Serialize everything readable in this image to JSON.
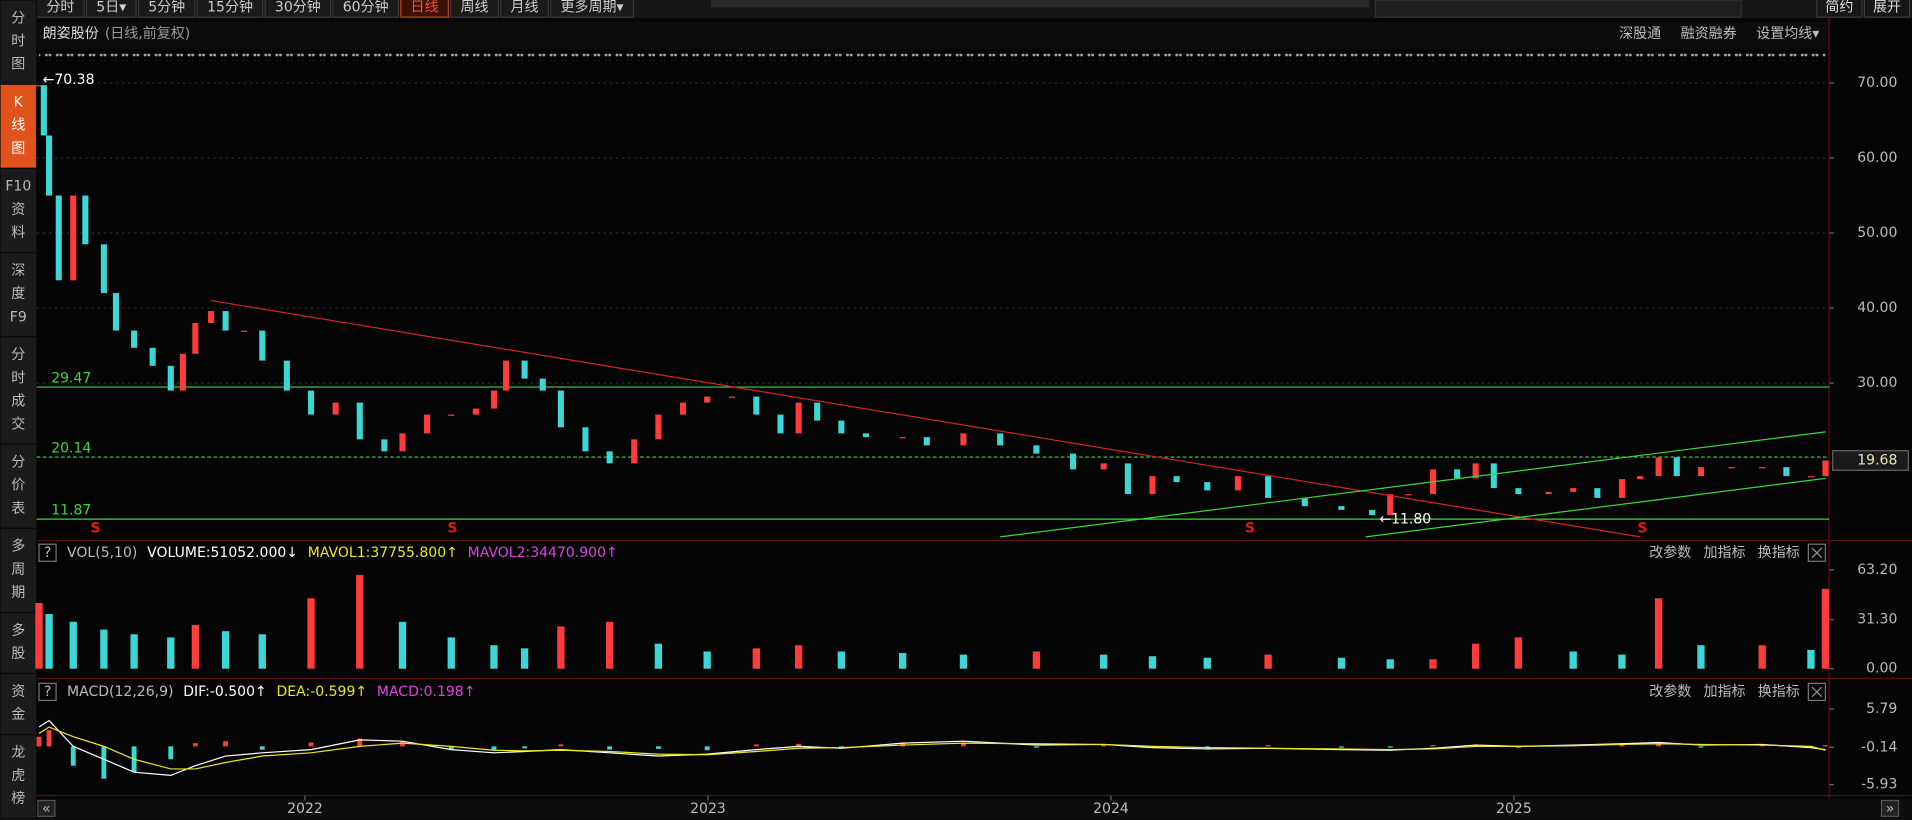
{
  "toolbar": {
    "tabs": [
      "分时",
      "5日▾",
      "5分钟",
      "15分钟",
      "30分钟",
      "60分钟",
      "日线",
      "周线",
      "月线",
      "更多周期▾"
    ],
    "active": 6,
    "right": [
      "简约",
      "展开"
    ]
  },
  "sidebar": {
    "items": [
      [
        "分",
        "时",
        "图"
      ],
      [
        "K",
        "线",
        "图"
      ],
      [
        "F10",
        "资",
        "料"
      ],
      [
        "深",
        "度",
        "F9"
      ],
      [
        "分",
        "时",
        "成",
        "交"
      ],
      [
        "分",
        "价",
        "表"
      ],
      [
        "多",
        "周",
        "期"
      ],
      [
        "多",
        "股"
      ],
      [
        "资",
        "金"
      ],
      [
        "龙",
        "虎",
        "榜"
      ]
    ],
    "active": 1
  },
  "chart_header": {
    "title": "朗姿股份",
    "subtitle": "(日线,前复权)",
    "links": [
      "深股通",
      "融资融券",
      "设置均线▾"
    ]
  },
  "panel_buttons": [
    "改参数",
    "加指标",
    "换指标"
  ],
  "help": "?",
  "chart_data": [
    {
      "type": "candlestick",
      "x": [
        2021.34,
        2021.352,
        2021.365,
        2021.389,
        2021.425,
        2021.455,
        2021.501,
        2021.531,
        2021.576,
        2021.622,
        2021.667,
        2021.697,
        2021.728,
        2021.767,
        2021.803,
        2021.849,
        2021.894,
        2021.955,
        2022.015,
        2022.076,
        2022.136,
        2022.197,
        2022.242,
        2022.303,
        2022.363,
        2022.424,
        2022.469,
        2022.499,
        2022.545,
        2022.59,
        2022.635,
        2022.696,
        2022.756,
        2022.817,
        2022.877,
        2022.938,
        2022.998,
        2023.059,
        2023.12,
        2023.18,
        2023.225,
        2023.271,
        2023.331,
        2023.392,
        2023.483,
        2023.543,
        2023.634,
        2023.725,
        2023.815,
        2023.906,
        2023.982,
        2024.042,
        2024.103,
        2024.163,
        2024.239,
        2024.315,
        2024.39,
        2024.481,
        2024.572,
        2024.648,
        2024.693,
        2024.738,
        2024.799,
        2024.859,
        2024.905,
        2024.95,
        2025.011,
        2025.086,
        2025.147,
        2025.207,
        2025.268,
        2025.313,
        2025.359,
        2025.404,
        2025.464,
        2025.54,
        2025.616,
        2025.676,
        2025.737,
        2025.773
      ],
      "values": [
        69.7,
        63,
        55,
        43.7,
        55,
        48.5,
        42,
        37,
        34.7,
        32.3,
        29,
        33.9,
        38,
        39.6,
        37,
        37,
        33,
        29,
        25.8,
        27.4,
        22.5,
        20.9,
        23.3,
        25.8,
        25.8,
        26.6,
        29,
        33,
        30.6,
        29,
        24.1,
        20.9,
        19.3,
        22.5,
        25.8,
        27.4,
        28.2,
        28.2,
        25.8,
        23.3,
        27.4,
        25,
        23.3,
        22.8,
        22.8,
        21.7,
        23.3,
        21.7,
        20.6,
        18.5,
        19.3,
        15.2,
        17.6,
        16.8,
        15.7,
        17.6,
        14.7,
        13.6,
        13.1,
        12.4,
        15.2,
        15.2,
        18.5,
        17.3,
        19.3,
        16,
        15.2,
        15.5,
        16,
        14.7,
        17.2,
        17.6,
        20.1,
        17.6,
        18.8,
        18.8,
        18.8,
        17.6,
        17.6,
        19.68
      ],
      "up_color": "#ff3b3b",
      "down_color": "#3cd6d6",
      "xlim": [
        2021.334,
        2025.782
      ],
      "xticks": [
        2022,
        2023,
        2024,
        2025
      ],
      "ylim": [
        9.5,
        74.55
      ],
      "yticks": [
        {
          "value": 70,
          "label": "70.00"
        },
        {
          "value": 60,
          "label": "60.00"
        },
        {
          "value": 50,
          "label": "50.00"
        },
        {
          "value": 40,
          "label": "40.00"
        },
        {
          "value": 30,
          "label": "30.00"
        }
      ],
      "grid": true,
      "level_color": "#3ad63a",
      "levels": [
        {
          "value": 29.47,
          "dashed": false
        },
        {
          "value": 20.14,
          "dashed": true
        },
        {
          "value": 11.87,
          "dashed": false
        }
      ],
      "trendlines": [
        {
          "color": "#d42424",
          "x": [
            2021.767,
            2025.313
          ],
          "y": [
            41.0,
            9.5
          ]
        },
        {
          "color": "#3ad63a",
          "x": [
            2023.725,
            2025.773
          ],
          "y": [
            9.5,
            23.5
          ]
        },
        {
          "color": "#3ad63a",
          "x": [
            2024.632,
            2025.773
          ],
          "y": [
            9.5,
            17.3
          ]
        }
      ],
      "annotations": [
        {
          "text": "←70.38",
          "x": 2021.34,
          "y": 70.38
        },
        {
          "text": "←11.80",
          "x": 2024.657,
          "y": 11.8
        }
      ],
      "signals": {
        "label": "S",
        "color": "#e01818",
        "x": [
          2021.48,
          2022.366,
          2024.345,
          2025.319
        ]
      }
    },
    {
      "type": "bar",
      "header": [
        "VOL(5,10)",
        "VOLUME:51052.000↓",
        "MAVOL1:37755.800↑",
        "MAVOL2:34470.900↑"
      ],
      "header_colors": [
        "#bbbbbb",
        "#ffffff",
        "#e8e820",
        "#e040e0"
      ],
      "x": [
        2021.34,
        2021.365,
        2021.425,
        2021.501,
        2021.576,
        2021.667,
        2021.728,
        2021.803,
        2021.894,
        2022.015,
        2022.136,
        2022.242,
        2022.363,
        2022.469,
        2022.545,
        2022.635,
        2022.756,
        2022.877,
        2022.998,
        2023.12,
        2023.225,
        2023.331,
        2023.483,
        2023.634,
        2023.815,
        2023.982,
        2024.103,
        2024.239,
        2024.39,
        2024.572,
        2024.693,
        2024.799,
        2024.905,
        2025.011,
        2025.147,
        2025.268,
        2025.359,
        2025.464,
        2025.616,
        2025.737,
        2025.773
      ],
      "values": [
        42,
        35,
        30,
        25,
        22,
        20,
        28,
        24,
        22,
        45,
        60,
        30,
        20,
        15,
        13,
        27,
        30,
        16,
        11,
        13,
        15,
        11,
        10,
        9,
        11,
        9,
        8,
        7,
        9,
        7,
        6,
        6,
        16,
        20,
        11,
        9,
        45,
        15,
        15,
        12,
        51.05
      ],
      "up_color": "#ff3b3b",
      "down_color": "#3cd6d6",
      "xlim": [
        2021.334,
        2025.782
      ],
      "ylim": [
        -3.9,
        67.1
      ],
      "yticks": [
        {
          "value": 63.2,
          "label": "63.20"
        },
        {
          "value": 31.3,
          "label": "31.30"
        },
        {
          "value": 0,
          "label": "0.00"
        }
      ]
    },
    {
      "type": "macd",
      "header": [
        "MACD(12,26,9)",
        "DIF:-0.500↑",
        "DEA:-0.599↑",
        "MACD:0.198↑"
      ],
      "header_colors": [
        "#bbbbbb",
        "#ffffff",
        "#e8e820",
        "#e040e0"
      ],
      "x": [
        2021.34,
        2021.365,
        2021.425,
        2021.501,
        2021.576,
        2021.667,
        2021.728,
        2021.803,
        2021.894,
        2022.015,
        2022.136,
        2022.242,
        2022.363,
        2022.469,
        2022.545,
        2022.635,
        2022.756,
        2022.877,
        2022.998,
        2023.12,
        2023.225,
        2023.331,
        2023.483,
        2023.634,
        2023.815,
        2023.982,
        2024.103,
        2024.239,
        2024.39,
        2024.572,
        2024.693,
        2024.799,
        2024.905,
        2025.011,
        2025.147,
        2025.268,
        2025.359,
        2025.464,
        2025.616,
        2025.737,
        2025.773
      ],
      "histogram": [
        1.5,
        2.5,
        -3,
        -5,
        -4,
        -2,
        0.5,
        0.8,
        -0.5,
        0.6,
        1.2,
        0.8,
        -0.4,
        -0.6,
        -0.3,
        0.3,
        -0.5,
        -0.4,
        -0.6,
        0.3,
        0.4,
        -0.3,
        0.5,
        0.6,
        -0.2,
        0.3,
        -0.2,
        -0.3,
        0.2,
        -0.2,
        -0.2,
        0.2,
        0.3,
        -0.2,
        0.2,
        0.3,
        0.4,
        -0.2,
        0.2,
        -0.2,
        0.198
      ],
      "dif": [
        3,
        4,
        0,
        -2,
        -4,
        -4.5,
        -3,
        -1.5,
        -1,
        -0.5,
        1,
        0.8,
        -0.5,
        -1,
        -0.8,
        -0.5,
        -1,
        -1.5,
        -1.2,
        -0.5,
        0,
        -0.3,
        0.5,
        0.8,
        0.2,
        0.3,
        -0.2,
        -0.4,
        -0.3,
        -0.5,
        -0.6,
        -0.3,
        0.2,
        0,
        0.2,
        0.4,
        0.6,
        0.2,
        0.3,
        -0.2,
        -0.5
      ],
      "dea": [
        2,
        3,
        1.5,
        0,
        -2,
        -3.5,
        -3.5,
        -2.5,
        -1.5,
        -1,
        0,
        0.5,
        0,
        -0.6,
        -0.7,
        -0.6,
        -0.8,
        -1.2,
        -1.3,
        -0.8,
        -0.3,
        -0.2,
        0.2,
        0.5,
        0.4,
        0.3,
        0,
        -0.2,
        -0.3,
        -0.4,
        -0.5,
        -0.4,
        0,
        0,
        0.1,
        0.3,
        0.4,
        0.3,
        0.2,
        0,
        -0.599
      ],
      "up_color": "#ff3b3b",
      "down_color": "#3cd6d6",
      "dif_color": "#ffffff",
      "dea_color": "#e8e820",
      "xlim": [
        2021.334,
        2025.782
      ],
      "ylim": [
        -7.25,
        6.74
      ],
      "yticks": [
        5.79,
        -0.14,
        -5.93
      ]
    }
  ]
}
